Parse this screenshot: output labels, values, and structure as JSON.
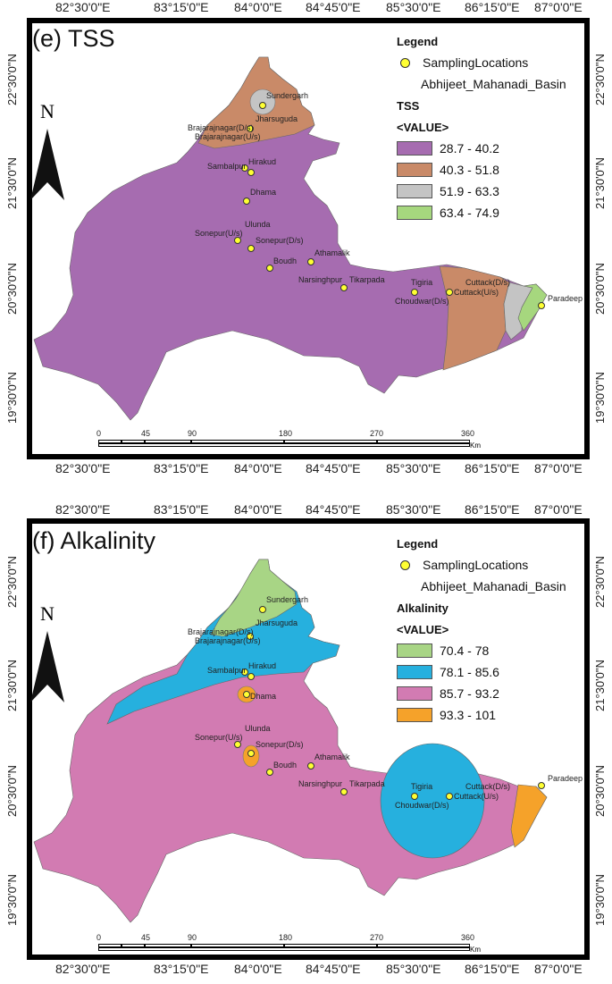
{
  "maps": [
    {
      "id": "e",
      "title": "(e) TSS",
      "legend_heading": "Legend",
      "legend_site_label": "SamplingLocations",
      "legend_basin_label": "Abhijeet_Mahanadi_Basin",
      "variable_label": "TSS",
      "value_label": "<VALUE>",
      "classes": [
        {
          "label": "28.7 - 40.2",
          "color": "#a66cb0"
        },
        {
          "label": "40.3 - 51.8",
          "color": "#c98a68"
        },
        {
          "label": "51.9 - 63.3",
          "color": "#c4c4c4"
        },
        {
          "label": "63.4 - 74.9",
          "color": "#a6d77e"
        }
      ]
    },
    {
      "id": "f",
      "title": "(f) Alkalinity",
      "legend_heading": "Legend",
      "legend_site_label": "SamplingLocations",
      "legend_basin_label": "Abhijeet_Mahanadi_Basin",
      "variable_label": "Alkalinity",
      "value_label": "<VALUE>",
      "classes": [
        {
          "label": "70.4 - 78",
          "color": "#a8d585"
        },
        {
          "label": "78.1 - 85.6",
          "color": "#26b0de"
        },
        {
          "label": "85.7 - 93.2",
          "color": "#d27bb2"
        },
        {
          "label": "93.3 - 101",
          "color": "#f5a22a"
        }
      ]
    }
  ],
  "longitude_ticks": [
    "82°30'0\"E",
    "83°15'0\"E",
    "84°0'0\"E",
    "84°45'0\"E",
    "85°30'0\"E",
    "86°15'0\"E",
    "87°0'0\"E"
  ],
  "latitude_ticks": [
    "22°30'0\"N",
    "21°30'0\"N",
    "20°30'0\"N",
    "19°30'0\"N"
  ],
  "north_label": "N",
  "scale_ticks": [
    "0",
    "45",
    "90",
    "180",
    "270",
    "360"
  ],
  "scale_unit": "Km",
  "sites": [
    "Sundergarh",
    "Jharsuguda",
    "Brajarajnagar(D/s)",
    "Brajarajnagar(U/s)",
    "Sambalpur",
    "Hirakud",
    "Dhama",
    "Ulunda",
    "Sonepur(U/s)",
    "Sonepur(D/s)",
    "Athamalik",
    "Boudh",
    "Narsinghpur",
    "Tikarpada",
    "Tigiria",
    "Cuttack(D/s)",
    "Cuttack(U/s)",
    "Choudwar(D/s)",
    "Paradeep"
  ],
  "colors": {
    "basin_outline": "#555555",
    "site_marker": "#ffff33"
  }
}
